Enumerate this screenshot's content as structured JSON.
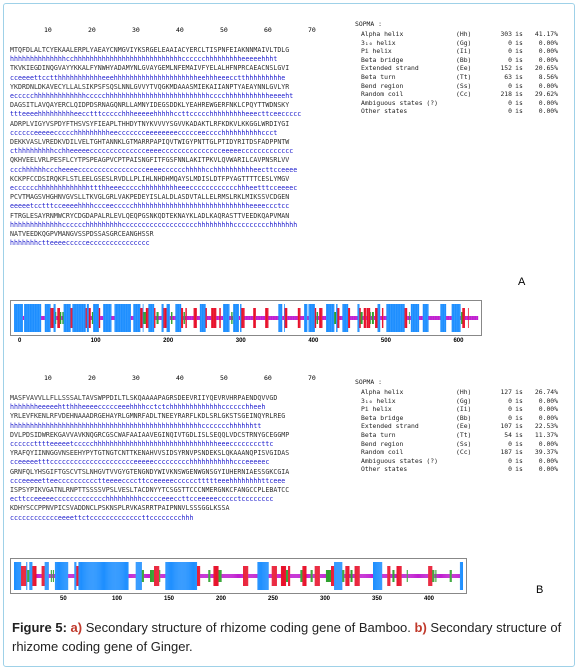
{
  "panel_a": {
    "letter": "A",
    "ruler": [
      "10",
      "20",
      "30",
      "40",
      "50",
      "60",
      "70"
    ],
    "rows": [
      {
        "t": "seq",
        "s": "MTQFDLALTCYEKAALERPLYAEAYCNMGVIYKSRGELEAAIACYERCLTISPNFEIAKNNMAIVLTDLG"
      },
      {
        "t": "ss",
        "s": "hhhhhhhhhhhhhhcchhhhhhhhhhhhhhhhhhhhhhhhhhhcccccchhhhhhhhheeeeehhht"
      },
      {
        "t": "seq",
        "s": "TKVKIEGDINQGVAYYKKALFYNWHYADAMYNLGVAYGEMLNFEMAIVFYELALHFNPRCAEACNSLGVI"
      },
      {
        "t": "ss",
        "s": "cceeeettcctthhhhhhhhhhheeehhhhhhhhhhhhhhhhhhhhheehhheeecctthhhhhhhhhe"
      },
      {
        "t": "seq",
        "s": "YKDRDNLDKAVECYLLALSIKPSFSQSLNNLGVVYTVQGKMDAAASMIEKAIIANPTYAEAYNNLGVLYR"
      },
      {
        "t": "ss",
        "s": "eccccchhhhhhhhhhhhhccccchhhhhhhhhhhhhhhhhhhhhhhhhhcccchhhhhhhhhhheeeeht"
      },
      {
        "t": "seq",
        "s": "DAGSITLAVQAYERCLQIDPDSRNAGQNRLLAMNYIDEGSDDKLYEAHREWGERFNKLCPQYTTWDNSKY"
      },
      {
        "t": "ss",
        "s": "ttteeeehhhhhhhhheecctttccccchhheeeeehhhhhccttccccchhhhhhhhheeecttceeccccc"
      },
      {
        "t": "seq",
        "s": "ADRPLVIGYVSPDYFTHSVSYFIEAPLTHHDYTNYKVVVYSGVVKADAKTLRFKDKVLKKGGLWRDIYGI"
      },
      {
        "t": "ss",
        "s": "cccccceeeeeccccchhhhhhhhheeccccccceeeeeeeeccccceecccchhhhhhhhhhccct"
      },
      {
        "t": "seq",
        "s": "DEKKVASLVREDKVDILVELTGHTANNKLGTMARRPAPIQVTWIGYPNTTGLPTIDYRITDSFADPPNTW"
      },
      {
        "t": "ss",
        "s": "cthhhhhhhhhcchheeeeecccccccccccccceeeeccccccccccccccceeeeeccccccccccccc"
      },
      {
        "t": "seq",
        "s": "QKHVEELVRLPESFLCYTPSPEAGPVCPTPAISNGFITFGSFNNLAKITPKVLQVWARILCAVPNSRLVV"
      },
      {
        "t": "ss",
        "s": "ccchhhhhhcccheeeeccccccccccccccccceeeecccccchhhhhcchhhhhhhhhheecttcceeee"
      },
      {
        "t": "seq",
        "s": "KCKPFCCDSIRQKFLSTLEELGSESLRVDLLPLIHLNHDHMQAYSLMDISLDTFPYAGTTTTCESLYMGV"
      },
      {
        "t": "ss",
        "s": "ecccccchhhhhhhhhhhhhttthheeeccccchhhhhhhhheeecccccccccccchhheetttcceeeec"
      },
      {
        "t": "seq",
        "s": "PCVTMAGSVHGHNVGVSLLTKVGLGRLVAKPEDEYISLALDLASDVTALLELRMSLRKLMIKSSVCDGEN"
      },
      {
        "t": "ss",
        "s": "eeeeetcctttcceeeehhhhccceeccccchhhhhhhhhhhhhhhhhhhhhhhhhhhhheeeeccctcc"
      },
      {
        "t": "seq",
        "s": "FTRGLESAYRNMWCRYCDGDAPALRLEVLQEQPGSNKQDTEKNAYKLADLKAQRASTTVEEDKQAPVMAN"
      },
      {
        "t": "ss",
        "s": "hhhhhhhhhhhhhcccccchhhhhhhhhccccccccccccccccccchhhhhhhhhccccccccchhhhhhh"
      },
      {
        "t": "seq",
        "s": "NATVEEDKQGPVMANGVSSPDSSASGRCEANGHSSR"
      },
      {
        "t": "ss",
        "s": "hhhhhhhctteeeeccccceccccccccccccccc"
      }
    ],
    "sopma": {
      "title": "SOPMA :",
      "lines": [
        {
          "label": "Alpha helix",
          "code": "(Hh)",
          "count": "303",
          "is": "is",
          "pct": "41.17%"
        },
        {
          "label": "3₁₀ helix",
          "code": "(Gg)",
          "count": "0",
          "is": "is",
          "pct": "0.00%"
        },
        {
          "label": "Pi helix",
          "code": "(Ii)",
          "count": "0",
          "is": "is",
          "pct": "0.00%"
        },
        {
          "label": "Beta bridge",
          "code": "(Bb)",
          "count": "0",
          "is": "is",
          "pct": "0.00%"
        },
        {
          "label": "Extended strand",
          "code": "(Ee)",
          "count": "152",
          "is": "is",
          "pct": "20.65%"
        },
        {
          "label": "Beta turn",
          "code": "(Tt)",
          "count": "63",
          "is": "is",
          "pct": "8.56%"
        },
        {
          "label": "Bend region",
          "code": "(Ss)",
          "count": "0",
          "is": "is",
          "pct": "0.00%"
        },
        {
          "label": "Random coil",
          "code": "(Cc)",
          "count": "218",
          "is": "is",
          "pct": "29.62%"
        },
        {
          "label": "Ambiguous states (?)",
          "code": "",
          "count": "0",
          "is": "is",
          "pct": "0.00%"
        },
        {
          "label": "Other states",
          "code": "",
          "count": "0",
          "is": "is",
          "pct": "0.00%"
        }
      ]
    },
    "axis": [
      "0",
      "100",
      "200",
      "300",
      "400",
      "500",
      "600"
    ]
  },
  "panel_b": {
    "letter": "B",
    "ruler": [
      "10",
      "20",
      "30",
      "40",
      "50",
      "60",
      "70"
    ],
    "rows": [
      {
        "t": "seq",
        "s": "MASFVAVVLLFLLSSSALTAVSWPPDILTLSKQAAAAPAGRSDEEVRIIYQEVRVHRPAENDQVVGD"
      },
      {
        "t": "ss",
        "s": "hhhhhhheeeeehtthhheeeeccccceeehhhhcctctchhhhhhhhhhhhhcccccchheeh"
      },
      {
        "t": "seq",
        "s": "YRLEVFKENLRFVDEHNAAADRGEHAYRLGMNRFADLTNEEYRARFLKDLSRLGKSTSGEINQYRLREG"
      },
      {
        "t": "ss",
        "s": "hhhhhhhhhhhhhhhhhhhhhhhhhhhhhhhhhhhhhhhhhhhhhhhhccccccchhhhhhtt"
      },
      {
        "t": "seq",
        "s": "DVLPDSIDWREKGAVVAVKNQGRCGSCWAFAAIAAVEGINQIVTGDLISLSEQQLVDCSTRNYGCEGGMP"
      },
      {
        "t": "ss",
        "s": "cccccctttteeeeetccccchhhhhhhhhhhhhhhhhhhhhhhhhhhhhhheeeccccccccttc"
      },
      {
        "t": "seq",
        "s": "YRAFQYIINNGGVNSEEHYPYTGTNGTCNTTKENAHVVSIDSYRNVPSNDEKSLQKAAANQPISVGIDAS"
      },
      {
        "t": "ss",
        "s": "cceeeeetttccccccccccccccccccccceeeeeccccccccchhhhhhhhhhhccceeeeec"
      },
      {
        "t": "seq",
        "s": "GRNFQLYHSGIFTGSCVTSLNHGVTVVGYGTENGNDYWIVKNSWGENWGNSGYIUHERNIAESSGKCGIA"
      },
      {
        "t": "ss",
        "s": "ccceeeeetteecccccccccctteeeeccccttcceeeeeccccccttttteeehhhhhhhhttceee"
      },
      {
        "t": "seq",
        "s": "ISPSYPIKVGATNLRNPTTSSSSVPSLVESLTACDNYYTCSGSTTCCCNMERGNKCFANGCCPLEBATCC"
      },
      {
        "t": "ss",
        "s": "ecttcceeeeeccccccccccccchhhhhhhhhccccceeeccttcceeeeeccccctcccccccc"
      },
      {
        "t": "seq",
        "s": "KDHYSCCPPNVPICSVADDNCLPSKNSPLRVKASRRTPAIPNNVLSSSGGLKSSA"
      },
      {
        "t": "ss",
        "s": "cccccccccccceeeettctcccccccccccccttcccccccchhh"
      }
    ],
    "sopma": {
      "title": "SOPMA :",
      "lines": [
        {
          "label": "Alpha helix",
          "code": "(Hh)",
          "count": "127",
          "is": "is",
          "pct": "26.74%"
        },
        {
          "label": "3₁₀ helix",
          "code": "(Gg)",
          "count": "0",
          "is": "is",
          "pct": "0.00%"
        },
        {
          "label": "Pi helix",
          "code": "(Ii)",
          "count": "0",
          "is": "is",
          "pct": "0.00%"
        },
        {
          "label": "Beta bridge",
          "code": "(Bb)",
          "count": "0",
          "is": "is",
          "pct": "0.00%"
        },
        {
          "label": "Extended strand",
          "code": "(Ee)",
          "count": "107",
          "is": "is",
          "pct": "22.53%"
        },
        {
          "label": "Beta turn",
          "code": "(Tt)",
          "count": "54",
          "is": "is",
          "pct": "11.37%"
        },
        {
          "label": "Bend region",
          "code": "(Ss)",
          "count": "0",
          "is": "is",
          "pct": "0.00%"
        },
        {
          "label": "Random coil",
          "code": "(Cc)",
          "count": "187",
          "is": "is",
          "pct": "39.37%"
        },
        {
          "label": "Ambiguous states (?)",
          "code": "",
          "count": "0",
          "is": "is",
          "pct": "0.00%"
        },
        {
          "label": "Other states",
          "code": "",
          "count": "0",
          "is": "is",
          "pct": "0.00%"
        }
      ]
    },
    "axis": [
      "50",
      "100",
      "150",
      "200",
      "250",
      "300",
      "350",
      "400"
    ]
  },
  "caption": {
    "fig": "Figure 5:",
    "a": "a)",
    "text_a": " Secondary structure of rhizome coding gene of Bamboo. ",
    "b": "b)",
    "text_b": " Secondary structure of rhizome coding gene of Ginger."
  },
  "colors": {
    "helix": "#1e8fff",
    "strand": "#e8102a",
    "turn": "#2ca02c",
    "coil": "#c01fd0"
  }
}
